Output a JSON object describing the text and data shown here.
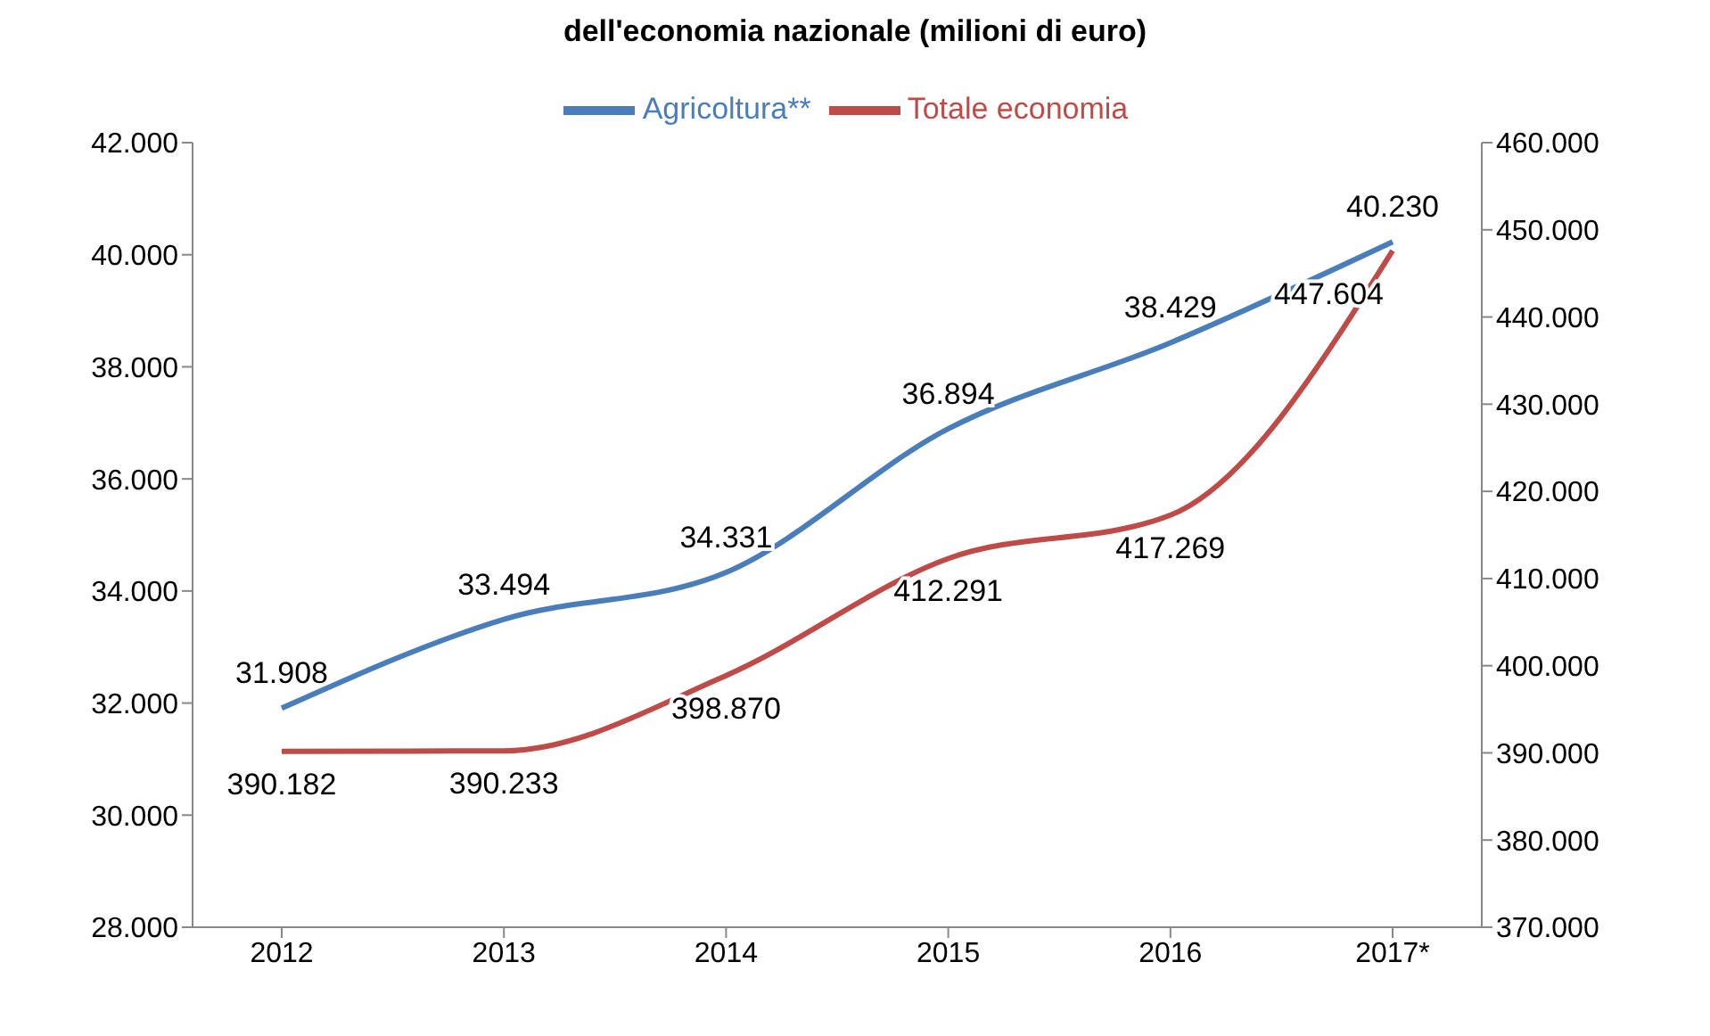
{
  "chart_data": {
    "type": "line",
    "title": "dell'economia nazionale (milioni di euro)",
    "categories": [
      "2012",
      "2013",
      "2014",
      "2015",
      "2016",
      "2017*"
    ],
    "series": [
      {
        "name": "Agricoltura**",
        "color": "#4a7ebb",
        "values": [
          31908,
          33494,
          34331,
          36894,
          38429,
          40230
        ],
        "value_labels": [
          "31.908",
          "33.494",
          "34.331",
          "36.894",
          "38.429",
          "40.230"
        ]
      },
      {
        "name": "Totale economia",
        "color": "#be4b48",
        "axis": "y2",
        "values": [
          390182,
          390233,
          398870,
          412291,
          417269,
          447604
        ],
        "value_labels": [
          "390.182",
          "390.233",
          "398.870",
          "412.291",
          "417.269",
          "447.604"
        ]
      }
    ],
    "ylim": [
      28000,
      42000
    ],
    "yticks": [
      {
        "value": 28000,
        "label": "28.000"
      },
      {
        "value": 30000,
        "label": "30.000"
      },
      {
        "value": 32000,
        "label": "32.000"
      },
      {
        "value": 34000,
        "label": "34.000"
      },
      {
        "value": 36000,
        "label": "36.000"
      },
      {
        "value": 38000,
        "label": "38.000"
      },
      {
        "value": 40000,
        "label": "40.000"
      },
      {
        "value": 42000,
        "label": "42.000"
      }
    ],
    "y2lim": [
      370000,
      460000
    ],
    "y2ticks": [
      {
        "value": 370000,
        "label": "370.000"
      },
      {
        "value": 380000,
        "label": "380.000"
      },
      {
        "value": 390000,
        "label": "390.000"
      },
      {
        "value": 400000,
        "label": "400.000"
      },
      {
        "value": 410000,
        "label": "410.000"
      },
      {
        "value": 420000,
        "label": "420.000"
      },
      {
        "value": 430000,
        "label": "430.000"
      },
      {
        "value": 440000,
        "label": "440.000"
      },
      {
        "value": 450000,
        "label": "450.000"
      },
      {
        "value": 460000,
        "label": "460.000"
      }
    ],
    "legend": "top",
    "grid": false,
    "marker": "none"
  }
}
